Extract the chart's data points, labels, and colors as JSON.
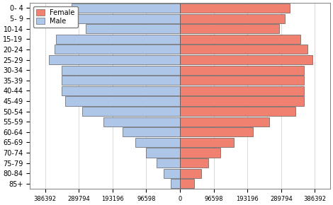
{
  "age_groups": [
    "0- 4",
    "5- 9",
    "10-14",
    "15-19",
    "20-24",
    "25-29",
    "30-34",
    "35-39",
    "40-44",
    "45-49",
    "50-54",
    "55-59",
    "60-64",
    "65-69",
    "70-74",
    "75-79",
    "80-84",
    "85+"
  ],
  "male": [
    310000,
    295000,
    270000,
    355000,
    360000,
    375000,
    340000,
    340000,
    340000,
    330000,
    280000,
    220000,
    165000,
    128000,
    96598,
    67000,
    47000,
    27000
  ],
  "female": [
    315000,
    300000,
    285000,
    345000,
    365000,
    380000,
    355000,
    355000,
    355000,
    355000,
    330000,
    255000,
    210000,
    155000,
    115000,
    82000,
    60000,
    40000
  ],
  "xlim": 430000,
  "male_color": "#aec6e8",
  "female_color": "#f08070",
  "edge_color": "#404040",
  "background_color": "#ffffff",
  "bar_height": 0.9
}
